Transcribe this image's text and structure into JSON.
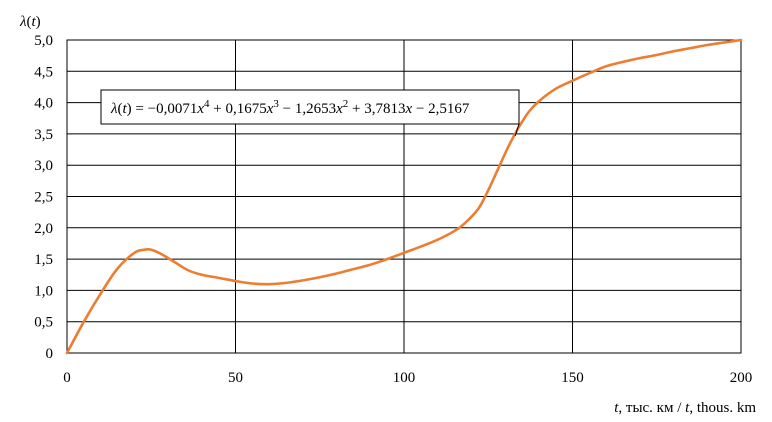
{
  "chart_data": {
    "type": "line",
    "ylabel_var": "λ",
    "ylabel_arg": "t",
    "ylabel_paren_open": "(",
    "ylabel_paren_close": ")",
    "xlabel_var_1": "t",
    "xlabel_text_1": ", тыс. км / ",
    "xlabel_var_2": "t",
    "xlabel_text_2": ", thous. km",
    "x_ticks": [
      "0",
      "50",
      "100",
      "150",
      "200"
    ],
    "x_tick_values": [
      0,
      50,
      100,
      150,
      200
    ],
    "y_ticks": [
      "0",
      "0,5",
      "1,0",
      "1,5",
      "2,0",
      "2,5",
      "3,0",
      "3,5",
      "4,0",
      "4,5",
      "5,0"
    ],
    "y_tick_values": [
      0,
      0.5,
      1.0,
      1.5,
      2.0,
      2.5,
      3.0,
      3.5,
      4.0,
      4.5,
      5.0
    ],
    "xlim": [
      0,
      200
    ],
    "ylim": [
      0,
      5
    ],
    "grid": true,
    "series_color": "#ED7D31",
    "series": [
      {
        "x": [
          0,
          5,
          10,
          15,
          20,
          23,
          25,
          28,
          32,
          36,
          40,
          45,
          50,
          55,
          60,
          65,
          70,
          75,
          80,
          85,
          90,
          95,
          100,
          105,
          110,
          115,
          118,
          122,
          125,
          128,
          131,
          134,
          137,
          140,
          145,
          150,
          155,
          160,
          165,
          170,
          175,
          180,
          185,
          190,
          195,
          200
        ],
        "y": [
          0,
          0.5,
          0.95,
          1.35,
          1.6,
          1.65,
          1.65,
          1.58,
          1.45,
          1.32,
          1.25,
          1.2,
          1.15,
          1.11,
          1.1,
          1.12,
          1.16,
          1.21,
          1.27,
          1.34,
          1.41,
          1.5,
          1.6,
          1.7,
          1.81,
          1.95,
          2.07,
          2.3,
          2.6,
          2.95,
          3.3,
          3.6,
          3.85,
          4.02,
          4.22,
          4.35,
          4.47,
          4.58,
          4.65,
          4.71,
          4.76,
          4.82,
          4.87,
          4.92,
          4.96,
          5.0
        ]
      }
    ],
    "annotation": {
      "lhs_var": "λ",
      "lhs_arg": "t",
      "eq_part_1": " = −0,0071",
      "eq_x_1": "x",
      "eq_exp_1": "4",
      "eq_part_2": " + 0,1675",
      "eq_x_2": "x",
      "eq_exp_2": "3",
      "eq_part_3": " − 1,2653",
      "eq_x_3": "x",
      "eq_exp_3": "2",
      "eq_part_4": " + 3,7813",
      "eq_x_4": "x",
      "eq_part_5": " − 2,5167",
      "points_to_x": 133
    }
  }
}
